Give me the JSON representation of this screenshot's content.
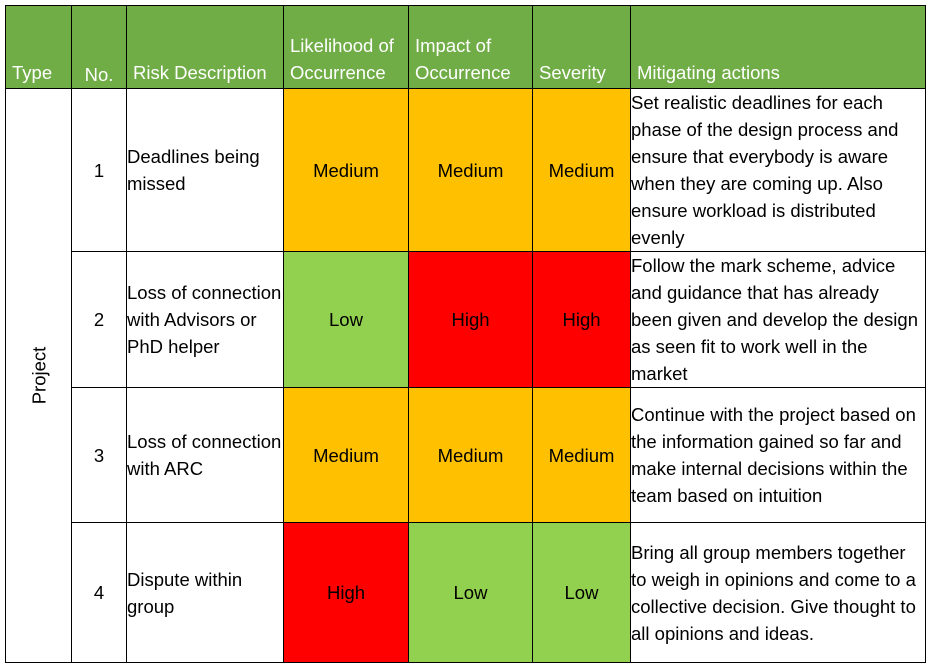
{
  "headers": {
    "type": "Type",
    "no": "No.",
    "risk": "Risk Description",
    "likelihood": "Likelihood of Occurrence",
    "impact": "Impact of Occurrence",
    "severity": "Severity",
    "mitigation": "Mitigating actions"
  },
  "type_label": "Project",
  "colors": {
    "header": "#70ad47",
    "medium": "#ffc000",
    "low": "#92d050",
    "high": "#ff0000"
  },
  "rows": [
    {
      "no": "1",
      "risk": "Deadlines being missed",
      "likelihood": "Medium",
      "impact": "Medium",
      "severity": "Medium",
      "mitigation": "Set realistic deadlines for each phase of the design process and ensure that everybody is aware when they are coming up. Also ensure workload is distributed evenly"
    },
    {
      "no": "2",
      "risk": "Loss of connection with Advisors or PhD helper",
      "likelihood": "Low",
      "impact": "High",
      "severity": "High",
      "mitigation": "Follow the mark scheme, advice and guidance that has already been given and develop the design as seen fit to work well in the market"
    },
    {
      "no": "3",
      "risk": "Loss of connection with ARC",
      "likelihood": "Medium",
      "impact": "Medium",
      "severity": "Medium",
      "mitigation": "Continue with the project based on the information gained so far and make internal decisions within the team based on intuition"
    },
    {
      "no": "4",
      "risk": "Dispute within group",
      "likelihood": "High",
      "impact": "Low",
      "severity": "Low",
      "mitigation": "Bring all group members together to weigh in opinions and come to a collective decision. Give thought to all opinions and ideas."
    }
  ]
}
